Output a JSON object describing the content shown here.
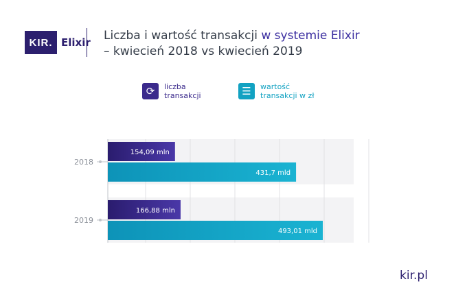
{
  "logo": {
    "box_text": "KIR.",
    "name": "Elixir"
  },
  "title": {
    "line1_plain": "Liczba i wartość transakcji ",
    "line1_highlight": "w systemie Elixir",
    "line2": "– kwiecień 2018 vs kwiecień 2019"
  },
  "legend": [
    {
      "label": "liczba transakcji",
      "color": "#3b2a8c",
      "icon": "refresh-arrows-icon"
    },
    {
      "label": "wartość transakcji w zł",
      "color": "#12a2c2",
      "icon": "coin-stack-icon"
    }
  ],
  "footer": {
    "text": "kir.pl"
  },
  "chart_data": {
    "type": "bar",
    "orientation": "horizontal",
    "categories": [
      "2018",
      "2019"
    ],
    "series": [
      {
        "name": "liczba transakcji",
        "values": [
          154.09,
          166.88
        ],
        "labels": [
          "154,09 mln",
          "166,88 mln"
        ],
        "color": "#3b2a8c"
      },
      {
        "name": "wartość transakcji w zł",
        "values": [
          431.7,
          493.01
        ],
        "labels": [
          "431,7 mld",
          "493,01 mld"
        ],
        "color": "#12a2c2"
      }
    ],
    "grid": true,
    "legend_position": "top"
  }
}
